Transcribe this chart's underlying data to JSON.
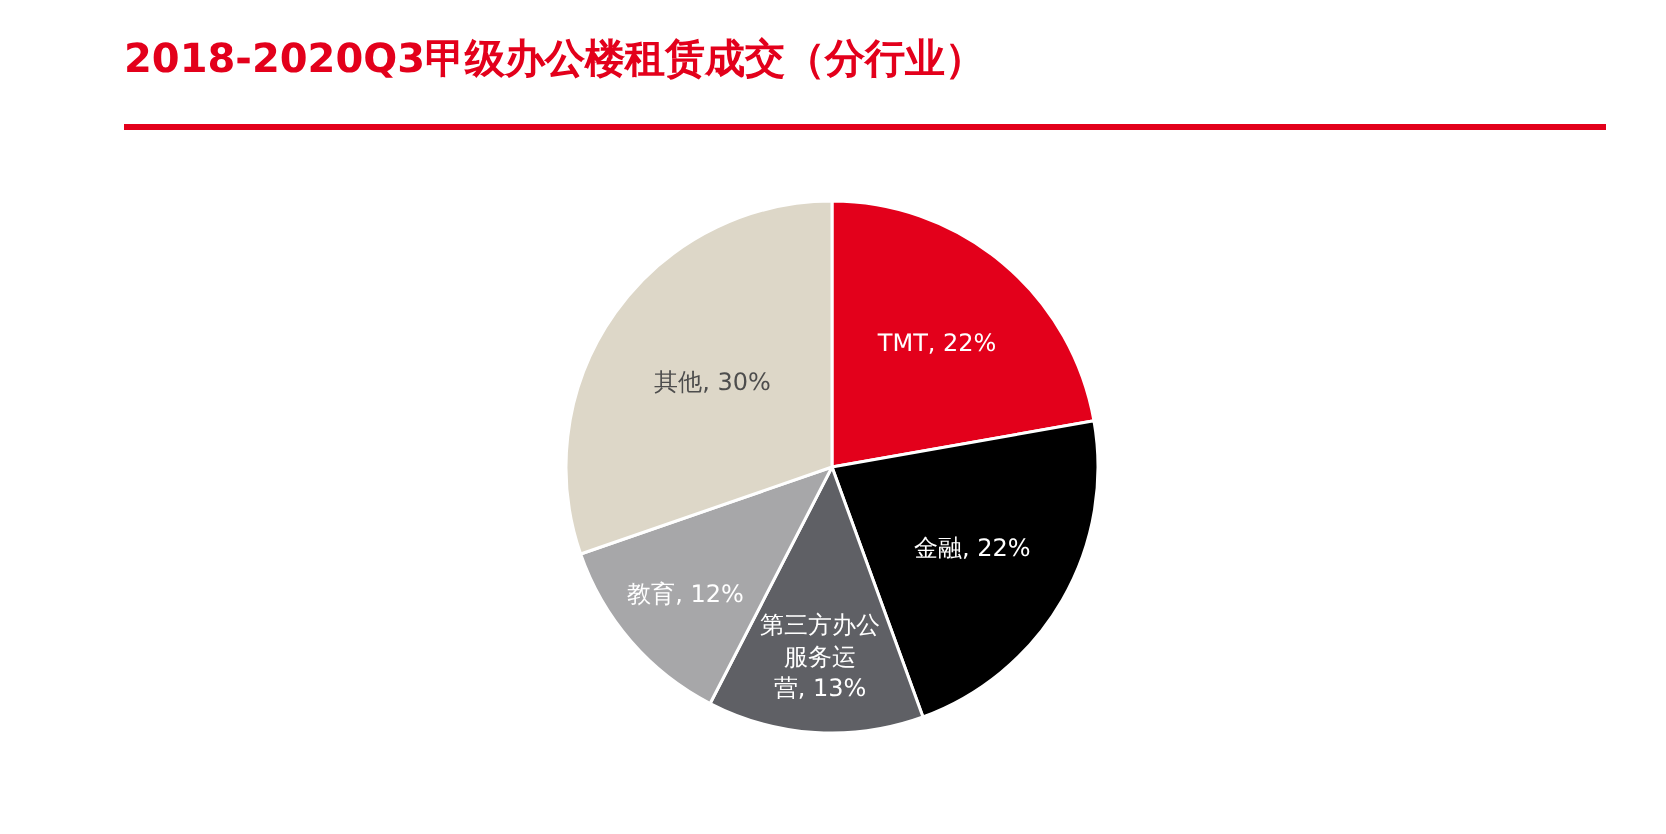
{
  "chart_data": {
    "type": "pie",
    "title": "2018-2020Q3甲级办公楼租赁成交（分行业）",
    "categories": [
      "TMT",
      "金融",
      "第三方办公服务运营",
      "教育",
      "其他"
    ],
    "values": [
      22,
      22,
      13,
      12,
      30
    ],
    "value_labels": [
      "22%",
      "22%",
      "13%",
      "12%",
      "30%"
    ],
    "colors": [
      "#e3001b",
      "#000000",
      "#5f6065",
      "#a7a7a9",
      "#ddd7c8"
    ]
  }
}
